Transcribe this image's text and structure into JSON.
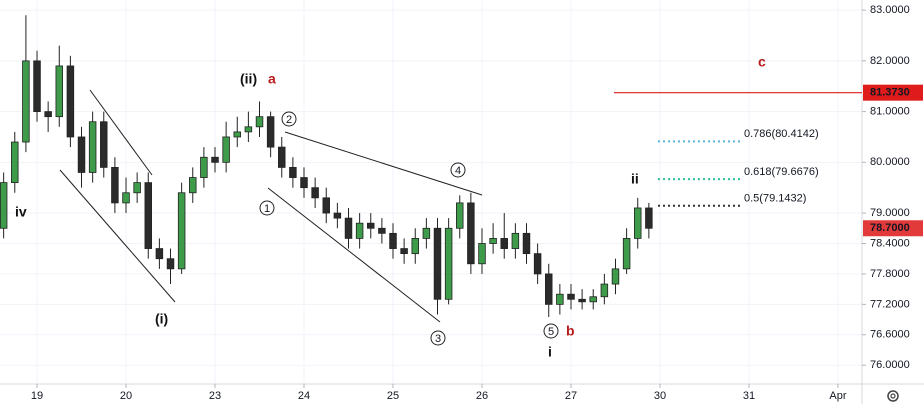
{
  "chart_data": {
    "type": "candlestick",
    "x": [
      -0.375,
      -0.25,
      -0.125,
      0,
      0.125,
      0.25,
      0.375,
      0.5,
      0.625,
      0.75,
      0.875,
      1,
      1.125,
      1.25,
      1.375,
      1.5,
      1.625,
      1.75,
      1.875,
      2,
      2.125,
      2.25,
      2.375,
      2.5,
      2.625,
      2.75,
      2.875,
      3,
      3.125,
      3.25,
      3.375,
      3.5,
      3.625,
      3.75,
      3.875,
      4,
      4.125,
      4.25,
      4.375,
      4.5,
      4.625,
      4.75,
      4.875,
      5,
      5.125,
      5.25,
      5.375,
      5.5,
      5.625,
      5.75,
      5.875,
      6,
      6.125,
      6.25,
      6.375,
      6.5,
      6.625,
      6.75,
      6.875
    ],
    "open": [
      78.7,
      79.6,
      80.4,
      82.0,
      81.0,
      80.9,
      81.9,
      80.5,
      79.8,
      80.8,
      79.9,
      79.2,
      79.4,
      79.6,
      78.3,
      78.1,
      77.9,
      79.4,
      79.7,
      80.1,
      80.0,
      80.5,
      80.6,
      80.7,
      80.9,
      80.3,
      79.9,
      79.7,
      79.5,
      79.3,
      79.0,
      78.9,
      78.5,
      78.8,
      78.7,
      78.6,
      78.3,
      78.2,
      78.5,
      78.7,
      77.3,
      78.7,
      79.2,
      78.0,
      78.4,
      78.5,
      78.3,
      78.6,
      78.2,
      77.8,
      77.2,
      77.4,
      77.3,
      77.25,
      77.35,
      77.6,
      77.9,
      78.5,
      79.1
    ],
    "high": [
      79.8,
      80.6,
      82.9,
      82.2,
      81.2,
      82.3,
      82.1,
      80.7,
      81.0,
      81.0,
      80.1,
      79.7,
      79.8,
      79.8,
      78.5,
      78.3,
      79.6,
      79.9,
      80.3,
      80.3,
      80.8,
      80.9,
      81.0,
      81.2,
      81.0,
      80.5,
      80.1,
      79.9,
      79.7,
      79.5,
      79.2,
      79.1,
      79.0,
      79.0,
      78.9,
      78.8,
      78.5,
      78.7,
      78.9,
      78.9,
      78.9,
      79.35,
      79.4,
      78.7,
      78.8,
      79.0,
      78.8,
      78.8,
      78.4,
      78.0,
      77.6,
      77.6,
      77.5,
      77.5,
      77.8,
      78.1,
      78.7,
      79.3,
      79.2
    ],
    "low": [
      78.5,
      79.4,
      80.2,
      80.8,
      80.6,
      80.7,
      80.3,
      79.5,
      79.6,
      79.7,
      79.0,
      79.0,
      79.2,
      78.1,
      77.9,
      77.6,
      77.8,
      79.2,
      79.5,
      79.8,
      79.8,
      80.3,
      80.4,
      80.5,
      80.1,
      79.7,
      79.5,
      79.3,
      79.1,
      78.8,
      78.7,
      78.3,
      78.3,
      78.5,
      78.4,
      78.1,
      78.0,
      78.0,
      78.3,
      77.0,
      77.2,
      78.5,
      77.8,
      77.8,
      78.2,
      78.1,
      78.1,
      78.0,
      77.6,
      76.95,
      77.0,
      77.1,
      77.1,
      77.1,
      77.2,
      77.4,
      77.8,
      78.3,
      78.5
    ],
    "close": [
      79.6,
      80.4,
      82.0,
      81.0,
      80.9,
      81.9,
      80.5,
      79.8,
      80.8,
      79.9,
      79.2,
      79.4,
      79.6,
      78.3,
      78.1,
      77.9,
      79.4,
      79.7,
      80.1,
      80.0,
      80.5,
      80.6,
      80.7,
      80.9,
      80.3,
      79.9,
      79.7,
      79.5,
      79.3,
      79.0,
      78.9,
      78.5,
      78.8,
      78.7,
      78.6,
      78.3,
      78.2,
      78.5,
      78.7,
      77.3,
      78.7,
      79.2,
      78.0,
      78.4,
      78.5,
      78.3,
      78.6,
      78.2,
      77.8,
      77.2,
      77.4,
      77.3,
      77.25,
      77.35,
      77.6,
      77.9,
      78.5,
      79.1,
      78.7
    ],
    "up_color": "#3d9b4a",
    "down_color": "#2b2b2b",
    "xlim": [
      -0.416,
      9.27
    ],
    "xticks": [
      {
        "value": 0,
        "label": "19"
      },
      {
        "value": 1,
        "label": "20"
      },
      {
        "value": 2,
        "label": "23"
      },
      {
        "value": 3,
        "label": "24"
      },
      {
        "value": 4,
        "label": "25"
      },
      {
        "value": 5,
        "label": "26"
      },
      {
        "value": 6,
        "label": "27"
      },
      {
        "value": 7,
        "label": "30"
      },
      {
        "value": 8,
        "label": "31"
      },
      {
        "value": 9,
        "label": "Apr"
      }
    ],
    "ylim": [
      75.63,
      83.2
    ],
    "yticks": [
      {
        "value": 83,
        "label": "83.0000"
      },
      {
        "value": 82,
        "label": "82.0000"
      },
      {
        "value": 81,
        "label": "81.0000"
      },
      {
        "value": 80,
        "label": "80.0000"
      },
      {
        "value": 79,
        "label": "79.0000"
      },
      {
        "value": 78.4,
        "label": "78.4000"
      },
      {
        "value": 77.8,
        "label": "77.8000"
      },
      {
        "value": 77.2,
        "label": "77.2000"
      },
      {
        "value": 76.6,
        "label": "76.6000"
      },
      {
        "value": 76,
        "label": "76.0000"
      }
    ],
    "grid": true,
    "annotations": [
      "iv",
      "(i)",
      "(ii)",
      "a",
      "c",
      "ii",
      "b",
      "i",
      "1",
      "2",
      "3",
      "4",
      "5"
    ],
    "fib_levels": [
      {
        "value": 80.4142,
        "label": "0.786(80.4142)",
        "color": "#5ab4e0"
      },
      {
        "value": 79.6676,
        "label": "0.618(79.6676)",
        "color": "#2bbf9a"
      },
      {
        "value": 79.1432,
        "label": "0.5(79.1432)",
        "color": "#333333"
      }
    ],
    "price_lines": [
      {
        "value": 81.373,
        "label": "81.3730",
        "color": "#e01b1b"
      }
    ],
    "last_price": {
      "value": 78.7,
      "label": "78.7000",
      "color": "#e23a3a"
    }
  }
}
